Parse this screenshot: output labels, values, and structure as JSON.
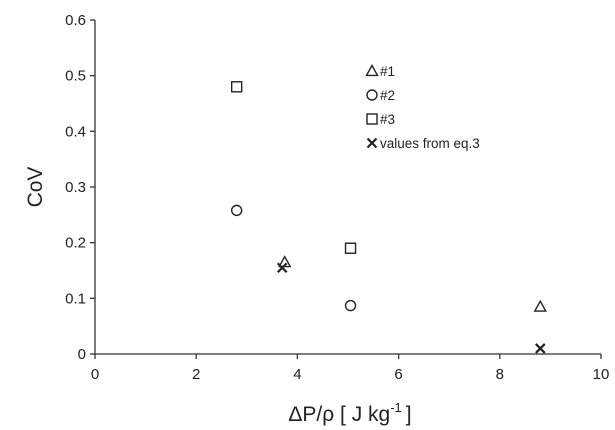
{
  "chart_data": {
    "type": "scatter",
    "title": "",
    "xlabel": "ΔP/ρ [ J kg",
    "xlabel_sup": "-1",
    "xlabel_close": "]",
    "ylabel": "CoV",
    "xlim": [
      0,
      10
    ],
    "ylim": [
      0,
      0.6
    ],
    "x_ticks": [
      0,
      2,
      4,
      6,
      8,
      10
    ],
    "y_ticks": [
      0,
      0.1,
      0.2,
      0.3,
      0.4,
      0.5,
      0.6
    ],
    "x_tick_labels": [
      "0",
      "2",
      "4",
      "6",
      "8",
      "10"
    ],
    "y_tick_labels": [
      "0",
      "0.1",
      "0.2",
      "0.3",
      "0.4",
      "0.5",
      "0.6"
    ],
    "grid": false,
    "legend_position": "top-right",
    "series": [
      {
        "name": "#1",
        "marker": "triangle-open",
        "points": [
          [
            3.75,
            0.165
          ],
          [
            8.8,
            0.085
          ]
        ]
      },
      {
        "name": "#2",
        "marker": "circle-open",
        "points": [
          [
            2.8,
            0.258
          ],
          [
            5.05,
            0.087
          ]
        ]
      },
      {
        "name": "#3",
        "marker": "square-open",
        "points": [
          [
            2.8,
            0.48
          ],
          [
            5.05,
            0.19
          ]
        ]
      },
      {
        "name": "values from eq.3",
        "marker": "x",
        "points": [
          [
            3.7,
            0.155
          ],
          [
            8.8,
            0.01
          ]
        ]
      }
    ],
    "colors": {
      "axis": "#333333",
      "marker": "#222222",
      "background": "#ffffff"
    }
  }
}
